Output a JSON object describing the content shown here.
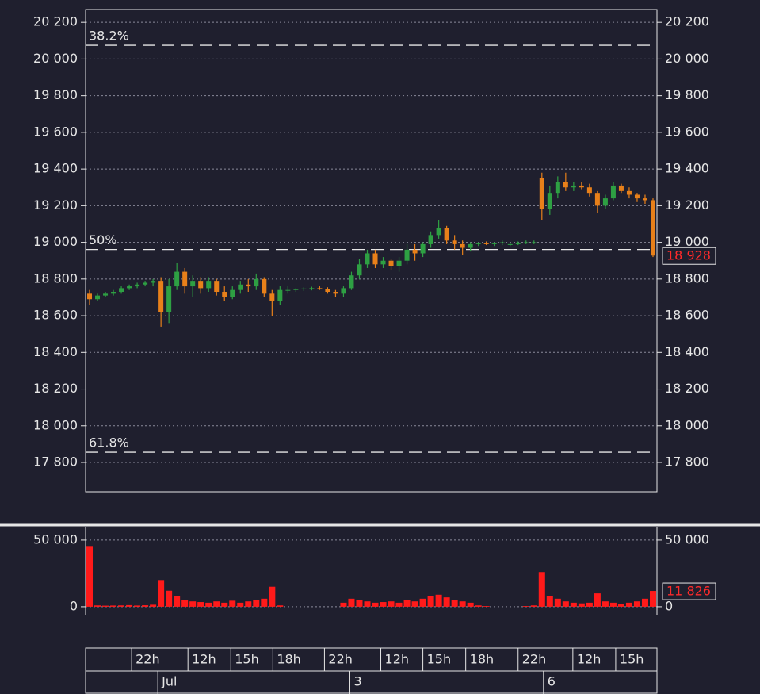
{
  "chart_data": {
    "type": "candlestick",
    "up_color": "#2ea043",
    "down_color": "#e8801a",
    "volume_color": "#ff1a1a",
    "grid": true,
    "xlim": [
      0,
      72
    ],
    "xticks": [
      {
        "value": 5.8,
        "label": "22h"
      },
      {
        "value": 12.9,
        "label": "12h"
      },
      {
        "value": 18.3,
        "label": "15h"
      },
      {
        "value": 23.6,
        "label": "18h"
      },
      {
        "value": 30.1,
        "label": "22h"
      },
      {
        "value": 37.2,
        "label": "12h"
      },
      {
        "value": 42.5,
        "label": "15h"
      },
      {
        "value": 47.9,
        "label": "18h"
      },
      {
        "value": 54.5,
        "label": "22h"
      },
      {
        "value": 61.4,
        "label": "12h"
      },
      {
        "value": 66.8,
        "label": "15h"
      }
    ],
    "date_ticks": [
      {
        "value": 9.1,
        "label": "Jul"
      },
      {
        "value": 33.3,
        "label": "3"
      },
      {
        "value": 57.7,
        "label": "6"
      }
    ],
    "ylim": [
      17640,
      20270
    ],
    "yticks": [
      {
        "value": 17800,
        "label": "17 800"
      },
      {
        "value": 18000,
        "label": "18 000"
      },
      {
        "value": 18200,
        "label": "18 200"
      },
      {
        "value": 18400,
        "label": "18 400"
      },
      {
        "value": 18600,
        "label": "18 600"
      },
      {
        "value": 18800,
        "label": "18 800"
      },
      {
        "value": 19000,
        "label": "19 000"
      },
      {
        "value": 19200,
        "label": "19 200"
      },
      {
        "value": 19400,
        "label": "19 400"
      },
      {
        "value": 19600,
        "label": "19 600"
      },
      {
        "value": 19800,
        "label": "19 800"
      },
      {
        "value": 20000,
        "label": "20 000"
      },
      {
        "value": 20200,
        "label": "20 200"
      }
    ],
    "fib_levels": [
      {
        "value": 20075,
        "label": "38.2%"
      },
      {
        "value": 18961,
        "label": "50%"
      },
      {
        "value": 17856,
        "label": "61.8%"
      }
    ],
    "last_price": {
      "value": 18928,
      "label": "18 928"
    },
    "ohlc": [
      [
        18720,
        18740,
        18660,
        18690
      ],
      [
        18690,
        18720,
        18680,
        18710
      ],
      [
        18710,
        18730,
        18700,
        18720
      ],
      [
        18720,
        18740,
        18710,
        18730
      ],
      [
        18730,
        18760,
        18720,
        18750
      ],
      [
        18750,
        18770,
        18740,
        18760
      ],
      [
        18760,
        18780,
        18750,
        18770
      ],
      [
        18770,
        18790,
        18760,
        18780
      ],
      [
        18780,
        18800,
        18760,
        18790
      ],
      [
        18790,
        18810,
        18540,
        18620
      ],
      [
        18620,
        18800,
        18560,
        18760
      ],
      [
        18760,
        18890,
        18740,
        18840
      ],
      [
        18840,
        18860,
        18720,
        18760
      ],
      [
        18760,
        18820,
        18700,
        18790
      ],
      [
        18790,
        18810,
        18720,
        18750
      ],
      [
        18750,
        18810,
        18730,
        18790
      ],
      [
        18790,
        18800,
        18710,
        18730
      ],
      [
        18730,
        18760,
        18680,
        18700
      ],
      [
        18700,
        18760,
        18690,
        18740
      ],
      [
        18740,
        18790,
        18720,
        18770
      ],
      [
        18770,
        18800,
        18730,
        18760
      ],
      [
        18760,
        18830,
        18740,
        18800
      ],
      [
        18800,
        18810,
        18700,
        18720
      ],
      [
        18720,
        18740,
        18600,
        18680
      ],
      [
        18680,
        18760,
        18660,
        18740
      ],
      [
        18740,
        18760,
        18720,
        18740
      ],
      [
        18740,
        18750,
        18730,
        18745
      ],
      [
        18745,
        18755,
        18735,
        18748
      ],
      [
        18748,
        18758,
        18738,
        18750
      ],
      [
        18750,
        18760,
        18740,
        18745
      ],
      [
        18745,
        18755,
        18720,
        18730
      ],
      [
        18730,
        18740,
        18700,
        18720
      ],
      [
        18720,
        18760,
        18700,
        18750
      ],
      [
        18750,
        18840,
        18740,
        18820
      ],
      [
        18820,
        18910,
        18800,
        18880
      ],
      [
        18880,
        18960,
        18860,
        18940
      ],
      [
        18940,
        18960,
        18860,
        18880
      ],
      [
        18880,
        18920,
        18860,
        18900
      ],
      [
        18900,
        18910,
        18850,
        18870
      ],
      [
        18870,
        18920,
        18840,
        18900
      ],
      [
        18900,
        18990,
        18880,
        18960
      ],
      [
        18960,
        18990,
        18900,
        18940
      ],
      [
        18940,
        19000,
        18920,
        18990
      ],
      [
        18990,
        19060,
        18970,
        19040
      ],
      [
        19040,
        19120,
        19020,
        19080
      ],
      [
        19080,
        19090,
        18990,
        19010
      ],
      [
        19010,
        19040,
        18960,
        18990
      ],
      [
        18990,
        19010,
        18930,
        18970
      ],
      [
        18970,
        19000,
        18950,
        18990
      ],
      [
        18990,
        19000,
        18980,
        18995
      ],
      [
        18995,
        19005,
        18985,
        18990
      ],
      [
        18990,
        19000,
        18980,
        18995
      ],
      [
        18995,
        19010,
        18985,
        19000
      ],
      [
        18990,
        19000,
        18980,
        18990
      ],
      [
        18990,
        19005,
        18985,
        18995
      ],
      [
        18995,
        19010,
        18990,
        19000
      ],
      [
        19000,
        19010,
        18990,
        19000
      ],
      [
        19350,
        19380,
        19120,
        19180
      ],
      [
        19180,
        19310,
        19150,
        19270
      ],
      [
        19270,
        19360,
        19240,
        19330
      ],
      [
        19330,
        19380,
        19280,
        19300
      ],
      [
        19300,
        19330,
        19280,
        19310
      ],
      [
        19310,
        19330,
        19290,
        19300
      ],
      [
        19300,
        19320,
        19250,
        19270
      ],
      [
        19270,
        19280,
        19160,
        19200
      ],
      [
        19200,
        19260,
        19180,
        19240
      ],
      [
        19240,
        19330,
        19230,
        19310
      ],
      [
        19310,
        19320,
        19270,
        19280
      ],
      [
        19280,
        19300,
        19240,
        19260
      ],
      [
        19260,
        19270,
        19220,
        19240
      ],
      [
        19240,
        19260,
        19210,
        19230
      ],
      [
        19230,
        19240,
        18920,
        18928
      ]
    ],
    "volume_ylim": [
      -6000,
      56500
    ],
    "volume_yticks": [
      0,
      {
        "value": 50000,
        "label": "50 000"
      }
    ],
    "last_volume": {
      "value": 11826,
      "label": "11 826"
    },
    "volume": [
      45000,
      1000,
      800,
      900,
      1000,
      1200,
      900,
      1100,
      1500,
      20000,
      12000,
      8000,
      5000,
      4000,
      3500,
      3000,
      4000,
      3000,
      4500,
      3000,
      4000,
      5000,
      6000,
      15000,
      1000,
      0,
      0,
      0,
      0,
      0,
      0,
      0,
      3000,
      6000,
      5000,
      4000,
      3000,
      3500,
      4000,
      3000,
      5000,
      4000,
      6000,
      8000,
      9000,
      7000,
      5000,
      4000,
      3000,
      1000,
      500,
      0,
      0,
      0,
      0,
      500,
      1000,
      26000,
      8000,
      6000,
      4000,
      3000,
      2500,
      3000,
      10000,
      4000,
      3000,
      2000,
      3000,
      4000,
      6000,
      11826
    ]
  }
}
